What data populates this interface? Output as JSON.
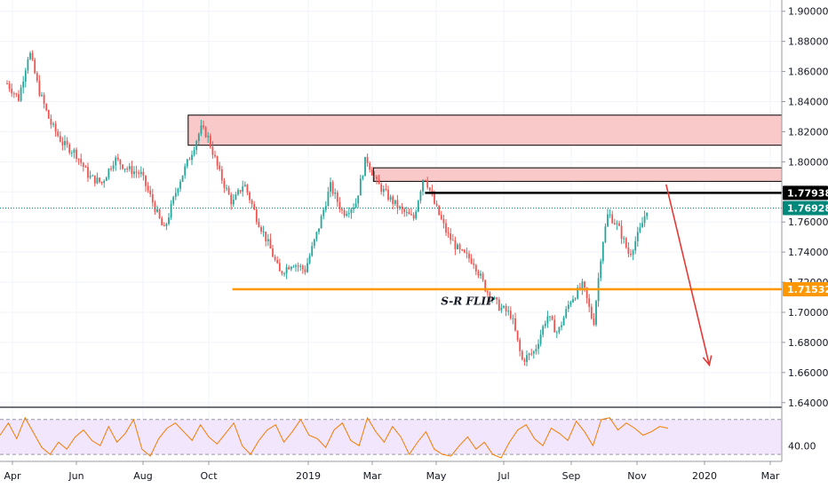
{
  "colors": {
    "up": "#26a69a",
    "down": "#ef5350",
    "zone_fill": "#f9c9c9",
    "zone_stroke": "#000000",
    "support": "#ff9800",
    "resistance_line": "#000000",
    "current_price": "#00897b",
    "arrow": "#e53935",
    "rsi_line": "#f57c00",
    "rsi_band": "#f1e6fb",
    "grid": "#f0f3fa",
    "axis": "#9598a1"
  },
  "chart_data": [
    {
      "type": "candlestick",
      "title": "",
      "xlabel": "",
      "ylabel": "",
      "x_ticks": [
        "Apr",
        "Jun",
        "Aug",
        "Oct",
        "2019",
        "Mar",
        "May",
        "Jul",
        "Sep",
        "Nov",
        "2020",
        "Mar"
      ],
      "y_ticks": [
        "1.90000",
        "1.88000",
        "1.86000",
        "1.84000",
        "1.82000",
        "1.80000",
        "1.78000",
        "1.76000",
        "1.74000",
        "1.72000",
        "1.70000",
        "1.68000",
        "1.66000",
        "1.64000"
      ],
      "ylim": [
        1.6375,
        1.9075
      ],
      "series_close_path": [
        {
          "d": "2018-04-01",
          "c": 1.852
        },
        {
          "d": "2018-04-12",
          "c": 1.842
        },
        {
          "d": "2018-04-22",
          "c": 1.874
        },
        {
          "d": "2018-05-01",
          "c": 1.848
        },
        {
          "d": "2018-05-12",
          "c": 1.826
        },
        {
          "d": "2018-05-24",
          "c": 1.812
        },
        {
          "d": "2018-06-05",
          "c": 1.806
        },
        {
          "d": "2018-06-18",
          "c": 1.79
        },
        {
          "d": "2018-06-30",
          "c": 1.786
        },
        {
          "d": "2018-07-12",
          "c": 1.802
        },
        {
          "d": "2018-07-25",
          "c": 1.795
        },
        {
          "d": "2018-08-06",
          "c": 1.792
        },
        {
          "d": "2018-08-18",
          "c": 1.772
        },
        {
          "d": "2018-08-28",
          "c": 1.754
        },
        {
          "d": "2018-09-10",
          "c": 1.784
        },
        {
          "d": "2018-09-22",
          "c": 1.804
        },
        {
          "d": "2018-10-02",
          "c": 1.822
        },
        {
          "d": "2018-10-08",
          "c": 1.818
        },
        {
          "d": "2018-10-20",
          "c": 1.792
        },
        {
          "d": "2018-11-01",
          "c": 1.772
        },
        {
          "d": "2018-11-12",
          "c": 1.786
        },
        {
          "d": "2018-11-24",
          "c": 1.763
        },
        {
          "d": "2018-12-06",
          "c": 1.744
        },
        {
          "d": "2018-12-16",
          "c": 1.726
        },
        {
          "d": "2018-12-28",
          "c": 1.733
        },
        {
          "d": "2019-01-09",
          "c": 1.728
        },
        {
          "d": "2019-01-21",
          "c": 1.754
        },
        {
          "d": "2019-02-02",
          "c": 1.784
        },
        {
          "d": "2019-02-14",
          "c": 1.766
        },
        {
          "d": "2019-02-26",
          "c": 1.772
        },
        {
          "d": "2019-03-08",
          "c": 1.803
        },
        {
          "d": "2019-03-18",
          "c": 1.786
        },
        {
          "d": "2019-03-30",
          "c": 1.776
        },
        {
          "d": "2019-04-10",
          "c": 1.768
        },
        {
          "d": "2019-04-22",
          "c": 1.762
        },
        {
          "d": "2019-05-02",
          "c": 1.792
        },
        {
          "d": "2019-05-12",
          "c": 1.772
        },
        {
          "d": "2019-05-24",
          "c": 1.752
        },
        {
          "d": "2019-06-05",
          "c": 1.74
        },
        {
          "d": "2019-06-18",
          "c": 1.734
        },
        {
          "d": "2019-06-30",
          "c": 1.715
        },
        {
          "d": "2019-07-12",
          "c": 1.704
        },
        {
          "d": "2019-07-24",
          "c": 1.698
        },
        {
          "d": "2019-08-03",
          "c": 1.668
        },
        {
          "d": "2019-08-15",
          "c": 1.674
        },
        {
          "d": "2019-08-27",
          "c": 1.698
        },
        {
          "d": "2019-09-06",
          "c": 1.686
        },
        {
          "d": "2019-09-18",
          "c": 1.708
        },
        {
          "d": "2019-09-30",
          "c": 1.718
        },
        {
          "d": "2019-10-10",
          "c": 1.692
        },
        {
          "d": "2019-10-18",
          "c": 1.744
        },
        {
          "d": "2019-10-24",
          "c": 1.766
        },
        {
          "d": "2019-11-03",
          "c": 1.756
        },
        {
          "d": "2019-11-13",
          "c": 1.738
        },
        {
          "d": "2019-11-23",
          "c": 1.754
        },
        {
          "d": "2019-11-30",
          "c": 1.7693
        }
      ],
      "annotations": {
        "resistance_zone_upper": {
          "y_top": 1.831,
          "y_bottom": 1.811,
          "x_start": "2018-09-20",
          "x_end": "2020-03-31"
        },
        "resistance_zone_lower": {
          "y_top": 1.796,
          "y_bottom": 1.787,
          "x_start": "2019-03-15",
          "x_end": "2020-03-31"
        },
        "resistance_line": {
          "y": 1.77938,
          "x_start": "2019-05-03",
          "x_end": "2020-03-31"
        },
        "support_line": {
          "y": 1.71532,
          "x_start": "2018-11-01",
          "x_end": "2020-03-31"
        },
        "current_price_line": {
          "y": 1.76928
        },
        "projection_arrow": {
          "from": {
            "d": "2019-12-18",
            "y": 1.785
          },
          "to": {
            "d": "2020-01-28",
            "y": 1.665
          }
        },
        "sr_flip_label": {
          "text": "S-R FLIP",
          "d": "2019-05-18",
          "y": 1.705
        }
      },
      "price_badges": [
        {
          "value": "1.77938",
          "y": 1.77938,
          "bg": "#000000",
          "fg": "#ffffff"
        },
        {
          "value": "1.76928",
          "y": 1.76928,
          "bg": "#00897b",
          "fg": "#ffffff"
        },
        {
          "value": "1.71532",
          "y": 1.71532,
          "bg": "#ff9800",
          "fg": "#ffffff"
        }
      ]
    },
    {
      "type": "line",
      "name": "RSI",
      "ylim": [
        22,
        82
      ],
      "upper_band": 70,
      "lower_band": 30,
      "y_ticks": [
        "40.00"
      ],
      "values": [
        52,
        66,
        48,
        72,
        55,
        38,
        30,
        44,
        36,
        50,
        58,
        46,
        40,
        62,
        44,
        54,
        70,
        36,
        28,
        48,
        60,
        66,
        56,
        46,
        64,
        50,
        42,
        54,
        66,
        40,
        30,
        46,
        58,
        64,
        44,
        56,
        70,
        52,
        48,
        38,
        58,
        66,
        46,
        40,
        72,
        56,
        44,
        62,
        50,
        30,
        44,
        56,
        36,
        30,
        28,
        40,
        50,
        36,
        44,
        30,
        26,
        44,
        58,
        64,
        48,
        40,
        60,
        54,
        46,
        68,
        56,
        40,
        70,
        72,
        58,
        66,
        60,
        52,
        56,
        62,
        60
      ]
    }
  ]
}
